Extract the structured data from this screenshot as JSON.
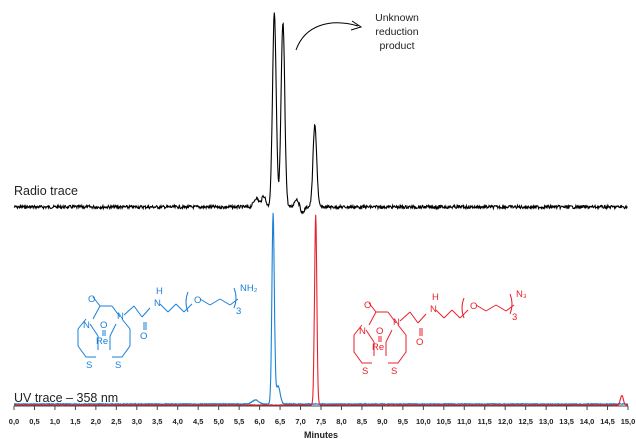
{
  "chart_data": {
    "type": "line",
    "xlabel": "Minutes",
    "xlim": [
      0,
      15
    ],
    "x_ticks": [
      "0,0",
      "0,5",
      "1,0",
      "1,5",
      "2,0",
      "2,5",
      "3,0",
      "3,5",
      "4,0",
      "4,5",
      "5,0",
      "5,5",
      "6,0",
      "6,5",
      "7,0",
      "7,5",
      "8,0",
      "8,5",
      "9,0",
      "9,5",
      "10,0",
      "10,5",
      "11,0",
      "11,5",
      "12,0",
      "12,5",
      "13,0",
      "13,5",
      "14,0",
      "14,5",
      "15,0"
    ],
    "grid": false,
    "traces": [
      {
        "label": "Radio trace",
        "color": "#000000",
        "peaks": [
          {
            "x": 6.36,
            "height": 1.0
          },
          {
            "x": 6.57,
            "height": 0.95
          },
          {
            "x": 7.35,
            "height": 0.42
          }
        ]
      },
      {
        "label": "UV trace – 358 nm",
        "series": [
          {
            "color": "#1a7fd9",
            "peaks": [
              {
                "x": 6.33,
                "height": 1.0
              }
            ]
          },
          {
            "color": "#e8202a",
            "peaks": [
              {
                "x": 7.37,
                "height": 1.0
              },
              {
                "x": 14.85,
                "height": 0.05
              }
            ]
          }
        ]
      }
    ],
    "annotations": [
      {
        "text": [
          "Unknown",
          "reduction",
          "product"
        ]
      }
    ]
  },
  "structures": {
    "blue": {
      "color": "#1a7fd9",
      "labels": {
        "o_top": "O",
        "h": "H",
        "n_amide": "N",
        "o_ring": "O",
        "n_left": "N",
        "n_right": "N",
        "oxo": "O",
        "re": "Re",
        "o_amide": "O",
        "s_left": "S",
        "s_right": "S",
        "sub": "3",
        "end": "NH₂"
      }
    },
    "red": {
      "color": "#e8202a",
      "labels": {
        "o_top": "O",
        "h": "H",
        "n_amide": "N",
        "o_ring": "O",
        "n_left": "N",
        "n_right": "N",
        "oxo": "O",
        "re": "Re",
        "o_amide": "O",
        "s_left": "S",
        "s_right": "S",
        "sub": "3",
        "end": "N₃"
      }
    }
  }
}
